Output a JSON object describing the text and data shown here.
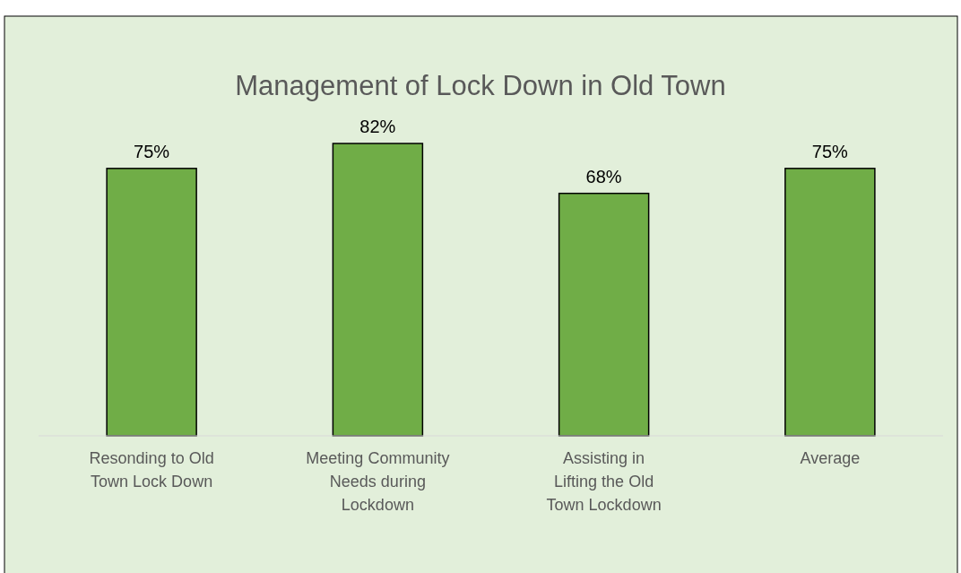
{
  "chart_data": {
    "type": "bar",
    "title": "Management of Lock Down in Old Town",
    "categories": [
      "Resonding to Old Town Lock Down",
      "Meeting Community Needs during Lockdown",
      "Assisting in Lifting the Old Town Lockdown",
      "Average"
    ],
    "values": [
      75,
      82,
      68,
      75
    ],
    "value_labels": [
      "75%",
      "82%",
      "68%",
      "75%"
    ],
    "color": "#70ad47"
  }
}
